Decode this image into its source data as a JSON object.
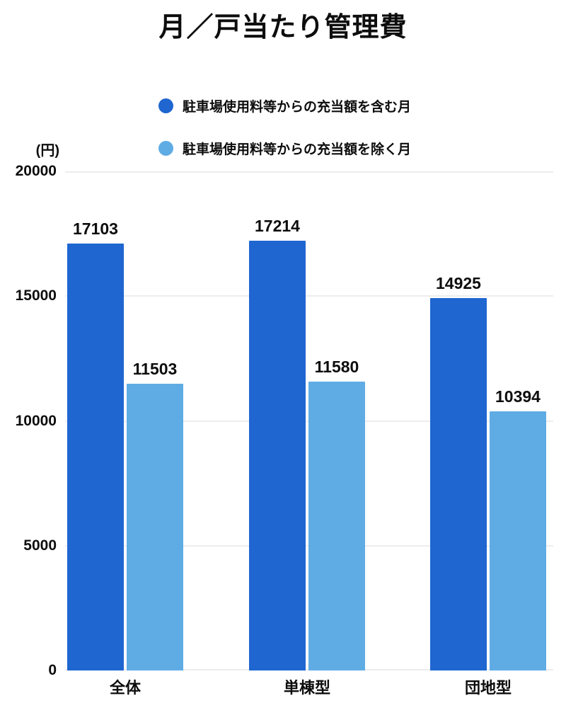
{
  "title": "月／戸当たり管理費",
  "y_axis": {
    "unit_label": "(円)"
  },
  "colors": {
    "background": "#ffffff",
    "text": "#0d0d0d",
    "grid": "#ededed",
    "series_dark": "#1F66D1",
    "series_light": "#5FACE5"
  },
  "chart_data": {
    "type": "bar",
    "title": "月／戸当たり管理費",
    "categories": [
      "全体",
      "単棟型",
      "団地型"
    ],
    "series": [
      {
        "name": "駐車場使用料等からの充当額を含む月",
        "color": "#1F66D1",
        "values": [
          17103,
          17214,
          14925
        ]
      },
      {
        "name": "駐車場使用料等からの充当額を除く月",
        "color": "#5FACE5",
        "values": [
          11503,
          11580,
          10394
        ]
      }
    ],
    "xlabel": "",
    "ylabel": "(円)",
    "ylim": [
      0,
      20000
    ],
    "yticks": [
      0,
      5000,
      10000,
      15000,
      20000
    ],
    "grid": true,
    "legend_position": "top",
    "value_labels": true
  }
}
